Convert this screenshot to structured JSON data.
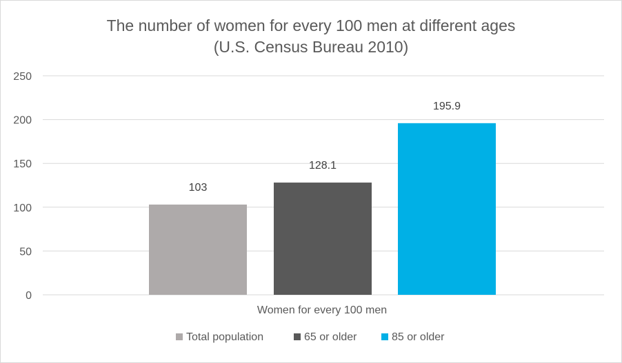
{
  "chart_data": {
    "type": "bar",
    "title": "The number of women for every 100 men at different ages",
    "subtitle": "(U.S. Census Bureau 2010)",
    "categories": [
      "Women for every 100 men"
    ],
    "series": [
      {
        "name": "Total population",
        "values": [
          103
        ],
        "label": "103",
        "color": "#AEAAAA"
      },
      {
        "name": "65 or older",
        "values": [
          128.1
        ],
        "label": "128.1",
        "color": "#595959"
      },
      {
        "name": "85 or older",
        "values": [
          195.9
        ],
        "label": "195.9",
        "color": "#00B0E6"
      }
    ],
    "xlabel": "",
    "ylabel": "",
    "ylim": [
      0,
      250
    ],
    "yticks": [
      "0",
      "50",
      "100",
      "150",
      "200",
      "250"
    ],
    "grid": true,
    "legend": "bottom"
  }
}
